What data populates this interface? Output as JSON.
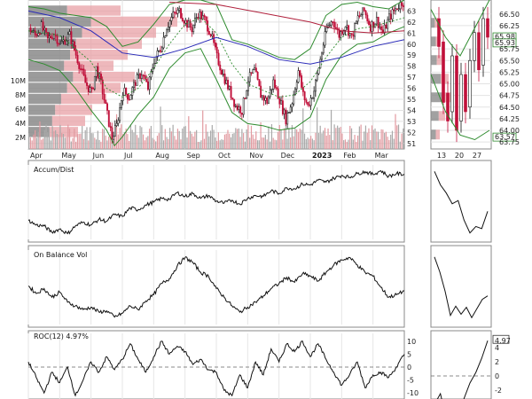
{
  "chart_data": [
    {
      "type": "candlestick",
      "panel": "price-main",
      "x_ticks": [
        "Apr",
        "May",
        "Jun",
        "Jul",
        "Aug",
        "Sep",
        "Oct",
        "Nov",
        "Dec",
        "2023",
        "Feb",
        "Mar"
      ],
      "y_ticks": [
        "51",
        "52",
        "53",
        "54",
        "55",
        "56",
        "57",
        "58",
        "59",
        "60",
        "61",
        "62",
        "63"
      ],
      "ylim": [
        50.5,
        64.0
      ],
      "volume_ticks": [
        "2M",
        "4M",
        "6M",
        "8M",
        "10M"
      ],
      "close_points": [
        [
          0,
          61.5
        ],
        [
          0.4,
          60.8
        ],
        [
          0.8,
          61.6
        ],
        [
          1.2,
          60.4
        ],
        [
          1.6,
          61.0
        ],
        [
          2.0,
          60.0
        ],
        [
          2.6,
          60.8
        ],
        [
          3.2,
          58.2
        ],
        [
          3.6,
          56.5
        ],
        [
          4.0,
          55.6
        ],
        [
          4.3,
          57.8
        ],
        [
          4.6,
          56.4
        ],
        [
          5.0,
          53.6
        ],
        [
          5.3,
          51.5
        ],
        [
          5.6,
          52.6
        ],
        [
          6.0,
          55.8
        ],
        [
          6.4,
          55.2
        ],
        [
          6.8,
          56.6
        ],
        [
          7.2,
          57.4
        ],
        [
          7.6,
          56.0
        ],
        [
          8.0,
          58.6
        ],
        [
          8.4,
          59.6
        ],
        [
          8.8,
          61.6
        ],
        [
          9.2,
          62.6
        ],
        [
          9.6,
          63.0
        ],
        [
          10.0,
          62.0
        ],
        [
          10.4,
          61.4
        ],
        [
          10.8,
          62.8
        ],
        [
          11.2,
          62.2
        ],
        [
          11.6,
          61.0
        ],
        [
          12.0,
          58.8
        ],
        [
          12.4,
          57.2
        ],
        [
          12.8,
          55.8
        ],
        [
          13.2,
          54.4
        ],
        [
          13.6,
          54.0
        ],
        [
          14.0,
          56.8
        ],
        [
          14.4,
          57.6
        ],
        [
          14.8,
          55.4
        ],
        [
          15.2,
          54.8
        ],
        [
          15.6,
          56.6
        ],
        [
          16.0,
          55.0
        ],
        [
          16.4,
          53.2
        ],
        [
          16.8,
          54.8
        ],
        [
          17.2,
          57.6
        ],
        [
          17.5,
          55.4
        ],
        [
          17.8,
          54.4
        ],
        [
          18.2,
          55.8
        ],
        [
          18.6,
          58.6
        ],
        [
          19.0,
          61.4
        ],
        [
          19.4,
          62.2
        ],
        [
          19.8,
          60.8
        ],
        [
          20.2,
          61.8
        ],
        [
          20.6,
          60.6
        ],
        [
          21.0,
          62.4
        ],
        [
          21.4,
          63.0
        ],
        [
          21.8,
          61.6
        ],
        [
          22.2,
          62.2
        ],
        [
          22.6,
          61.0
        ],
        [
          23.0,
          62.4
        ],
        [
          23.4,
          63.2
        ],
        [
          23.8,
          63.8
        ]
      ],
      "bollinger_upper": [
        [
          0,
          63.4
        ],
        [
          1,
          63.2
        ],
        [
          2,
          62.8
        ],
        [
          3,
          62.6
        ],
        [
          4,
          62.4
        ],
        [
          5,
          61.6
        ],
        [
          6,
          59.8
        ],
        [
          7,
          60.2
        ],
        [
          8,
          61.8
        ],
        [
          9,
          63.6
        ],
        [
          10,
          64.0
        ],
        [
          11,
          64.0
        ],
        [
          12,
          63.6
        ],
        [
          13,
          60.4
        ],
        [
          14,
          60.0
        ],
        [
          15,
          59.4
        ],
        [
          16,
          58.8
        ],
        [
          17,
          58.6
        ],
        [
          18,
          59.6
        ],
        [
          19,
          62.6
        ],
        [
          20,
          63.6
        ],
        [
          21,
          63.8
        ],
        [
          22,
          63.4
        ],
        [
          23,
          63.2
        ],
        [
          24,
          64.0
        ]
      ],
      "bollinger_lower": [
        [
          0,
          58.6
        ],
        [
          1,
          58.2
        ],
        [
          2,
          57.6
        ],
        [
          3,
          56.0
        ],
        [
          4,
          54.0
        ],
        [
          5,
          52.2
        ],
        [
          5.5,
          50.8
        ],
        [
          6,
          51.6
        ],
        [
          7,
          53.6
        ],
        [
          8,
          55.2
        ],
        [
          9,
          57.8
        ],
        [
          10,
          59.2
        ],
        [
          11,
          59.6
        ],
        [
          12,
          56.8
        ],
        [
          13,
          53.8
        ],
        [
          14,
          52.8
        ],
        [
          15,
          52.6
        ],
        [
          16,
          52.2
        ],
        [
          17,
          52.4
        ],
        [
          18,
          53.4
        ],
        [
          19,
          56.8
        ],
        [
          20,
          59.0
        ],
        [
          21,
          60.0
        ],
        [
          22,
          60.2
        ],
        [
          23,
          61.0
        ],
        [
          24,
          61.6
        ]
      ],
      "sma_short": [
        [
          0,
          61.2
        ],
        [
          2,
          60.8
        ],
        [
          4,
          58.4
        ],
        [
          5,
          56.0
        ],
        [
          6,
          55.2
        ],
        [
          7,
          56.0
        ],
        [
          8,
          57.8
        ],
        [
          9,
          60.0
        ],
        [
          10,
          61.8
        ],
        [
          11,
          62.4
        ],
        [
          12,
          61.0
        ],
        [
          13,
          58.2
        ],
        [
          14,
          56.4
        ],
        [
          15,
          55.8
        ],
        [
          16,
          55.2
        ],
        [
          17,
          55.4
        ],
        [
          18,
          56.6
        ],
        [
          19,
          58.8
        ],
        [
          20,
          60.6
        ],
        [
          21,
          61.4
        ],
        [
          22,
          61.6
        ],
        [
          23,
          62.0
        ],
        [
          24,
          62.4
        ]
      ],
      "sma_mid": [
        [
          0,
          63.0
        ],
        [
          2,
          62.4
        ],
        [
          4,
          61.2
        ],
        [
          6,
          59.2
        ],
        [
          8,
          58.8
        ],
        [
          10,
          59.6
        ],
        [
          12,
          60.6
        ],
        [
          14,
          59.8
        ],
        [
          16,
          58.6
        ],
        [
          18,
          58.2
        ],
        [
          20,
          58.8
        ],
        [
          22,
          59.8
        ],
        [
          24,
          60.4
        ]
      ],
      "sma_long": [
        [
          9,
          63.8
        ],
        [
          12,
          63.6
        ],
        [
          15,
          62.8
        ],
        [
          18,
          62.0
        ],
        [
          20,
          61.2
        ],
        [
          22,
          61.0
        ],
        [
          24,
          61.2
        ]
      ],
      "volume_profile": [
        [
          63,
          2.6
        ],
        [
          62,
          4.2
        ],
        [
          61,
          3.6
        ],
        [
          60,
          3.2
        ],
        [
          59,
          2.8
        ],
        [
          58,
          2.4
        ],
        [
          57,
          3.0
        ],
        [
          56,
          2.6
        ],
        [
          55,
          2.2
        ],
        [
          54,
          1.8
        ],
        [
          53,
          1.6
        ],
        [
          52,
          1.4
        ]
      ]
    },
    {
      "type": "candlestick",
      "panel": "price-inset",
      "x_ticks": [
        "13",
        "20",
        "27"
      ],
      "y_ticks": [
        "63.75",
        "64.00",
        "64.25",
        "64.50",
        "64.75",
        "65.00",
        "65.25",
        "65.50",
        "65.75",
        "66.25",
        "66.50"
      ],
      "price_badges": [
        "65.98",
        "65.93",
        "63.57"
      ],
      "ylim": [
        63.6,
        66.8
      ]
    },
    {
      "type": "line",
      "panel": "accum-dist",
      "title": "Accum/Dist",
      "x": [
        0,
        0.5,
        1,
        1.5,
        2,
        2.5,
        3,
        3.5,
        4,
        4.5,
        5,
        5.5,
        6,
        6.5,
        7,
        7.5,
        8,
        8.5,
        9,
        9.5,
        10,
        10.5,
        11,
        11.5,
        12,
        12.5,
        13,
        13.5,
        14,
        14.5,
        15,
        15.5,
        16,
        16.5,
        17,
        17.5,
        18,
        18.5,
        19,
        19.5,
        20,
        20.5,
        21,
        21.5,
        22,
        22.5,
        23,
        23.5,
        24
      ],
      "values": [
        -2.0,
        -3.0,
        -3.2,
        -4.5,
        -3.8,
        -4.8,
        -3.2,
        -2.4,
        -3.0,
        -1.8,
        -2.2,
        -0.8,
        -1.2,
        0.6,
        0.2,
        1.2,
        1.8,
        2.6,
        2.4,
        3.8,
        3.0,
        3.6,
        2.6,
        3.2,
        2.0,
        1.6,
        2.2,
        1.4,
        2.6,
        3.2,
        3.0,
        4.2,
        3.6,
        4.8,
        4.6,
        5.6,
        5.4,
        6.4,
        6.0,
        6.8,
        7.4,
        7.0,
        7.8,
        8.2,
        7.6,
        8.4,
        7.2,
        7.8,
        7.6
      ],
      "inset_values": [
        8.0,
        5.5,
        4.0,
        2.0,
        2.6,
        -1.0,
        -3.4,
        -2.2,
        -2.6,
        0.6
      ]
    },
    {
      "type": "line",
      "panel": "obv",
      "title": "On Balance Vol",
      "x": [
        0,
        0.5,
        1,
        1.5,
        2,
        2.5,
        3,
        3.5,
        4,
        4.5,
        5,
        5.5,
        6,
        6.5,
        7,
        7.5,
        8,
        8.5,
        9,
        9.5,
        10,
        10.5,
        11,
        11.5,
        12,
        12.5,
        13,
        13.5,
        14,
        14.5,
        15,
        15.5,
        16,
        16.5,
        17,
        17.5,
        18,
        18.5,
        19,
        19.5,
        20,
        20.5,
        21,
        21.5,
        22,
        22.5,
        23,
        23.5,
        24
      ],
      "values": [
        2.2,
        1.0,
        1.8,
        0.4,
        1.2,
        -0.4,
        -1.0,
        -1.6,
        -1.2,
        -2.0,
        -1.8,
        -2.8,
        -2.2,
        -1.0,
        -1.6,
        -0.2,
        0.8,
        2.6,
        3.4,
        5.4,
        6.8,
        6.0,
        4.4,
        3.8,
        1.8,
        0.4,
        -1.0,
        -2.0,
        -1.2,
        -0.4,
        0.6,
        1.8,
        2.6,
        3.6,
        2.8,
        4.2,
        3.8,
        3.0,
        4.4,
        5.6,
        6.4,
        6.8,
        5.6,
        4.4,
        3.8,
        2.0,
        0.4,
        0.8,
        1.4
      ],
      "inset_values": [
        7.6,
        5.0,
        1.6,
        -2.6,
        -1.0,
        -2.4,
        -1.2,
        -3.0,
        -1.4,
        0.2,
        0.8
      ]
    },
    {
      "type": "line",
      "panel": "roc",
      "title": "ROC(12) 4.97%",
      "y_ticks": [
        "10",
        "5",
        "0",
        "-5",
        "-10"
      ],
      "ylim": [
        -13,
        13
      ],
      "x": [
        0,
        0.5,
        1,
        1.5,
        2,
        2.5,
        3,
        3.5,
        4,
        4.5,
        5,
        5.5,
        6,
        6.5,
        7,
        7.5,
        8,
        8.5,
        9,
        9.5,
        10,
        10.5,
        11,
        11.5,
        12,
        12.5,
        13,
        13.5,
        14,
        14.5,
        15,
        15.5,
        16,
        16.5,
        17,
        17.5,
        18,
        18.5,
        19,
        19.5,
        20,
        20.5,
        21,
        21.5,
        22,
        22.5,
        23,
        23.5,
        24
      ],
      "values": [
        2.0,
        -4.0,
        -10.0,
        -2.0,
        -6.0,
        0.0,
        -11.0,
        -5.0,
        2.0,
        -2.0,
        4.0,
        -1.0,
        3.0,
        9.0,
        3.0,
        -2.0,
        4.0,
        10.0,
        5.0,
        8.0,
        6.0,
        1.0,
        3.0,
        -1.0,
        -2.0,
        -9.0,
        -11.0,
        -3.0,
        -8.0,
        2.0,
        -3.0,
        7.0,
        2.0,
        9.0,
        6.0,
        10.0,
        4.0,
        9.0,
        3.0,
        -2.0,
        -7.0,
        -3.0,
        2.0,
        -8.0,
        -3.0,
        -2.0,
        -4.0,
        0.0,
        4.97
      ],
      "inset_y_ticks": [
        "4.97",
        "4",
        "2",
        "0",
        "-2"
      ],
      "inset_ylim": [
        -3.5,
        6
      ],
      "inset_values": [
        -4.0,
        -2.5,
        -6.0,
        -3.5,
        -5.0,
        -3.2,
        -1.0,
        0.5,
        2.5,
        4.97
      ]
    }
  ]
}
